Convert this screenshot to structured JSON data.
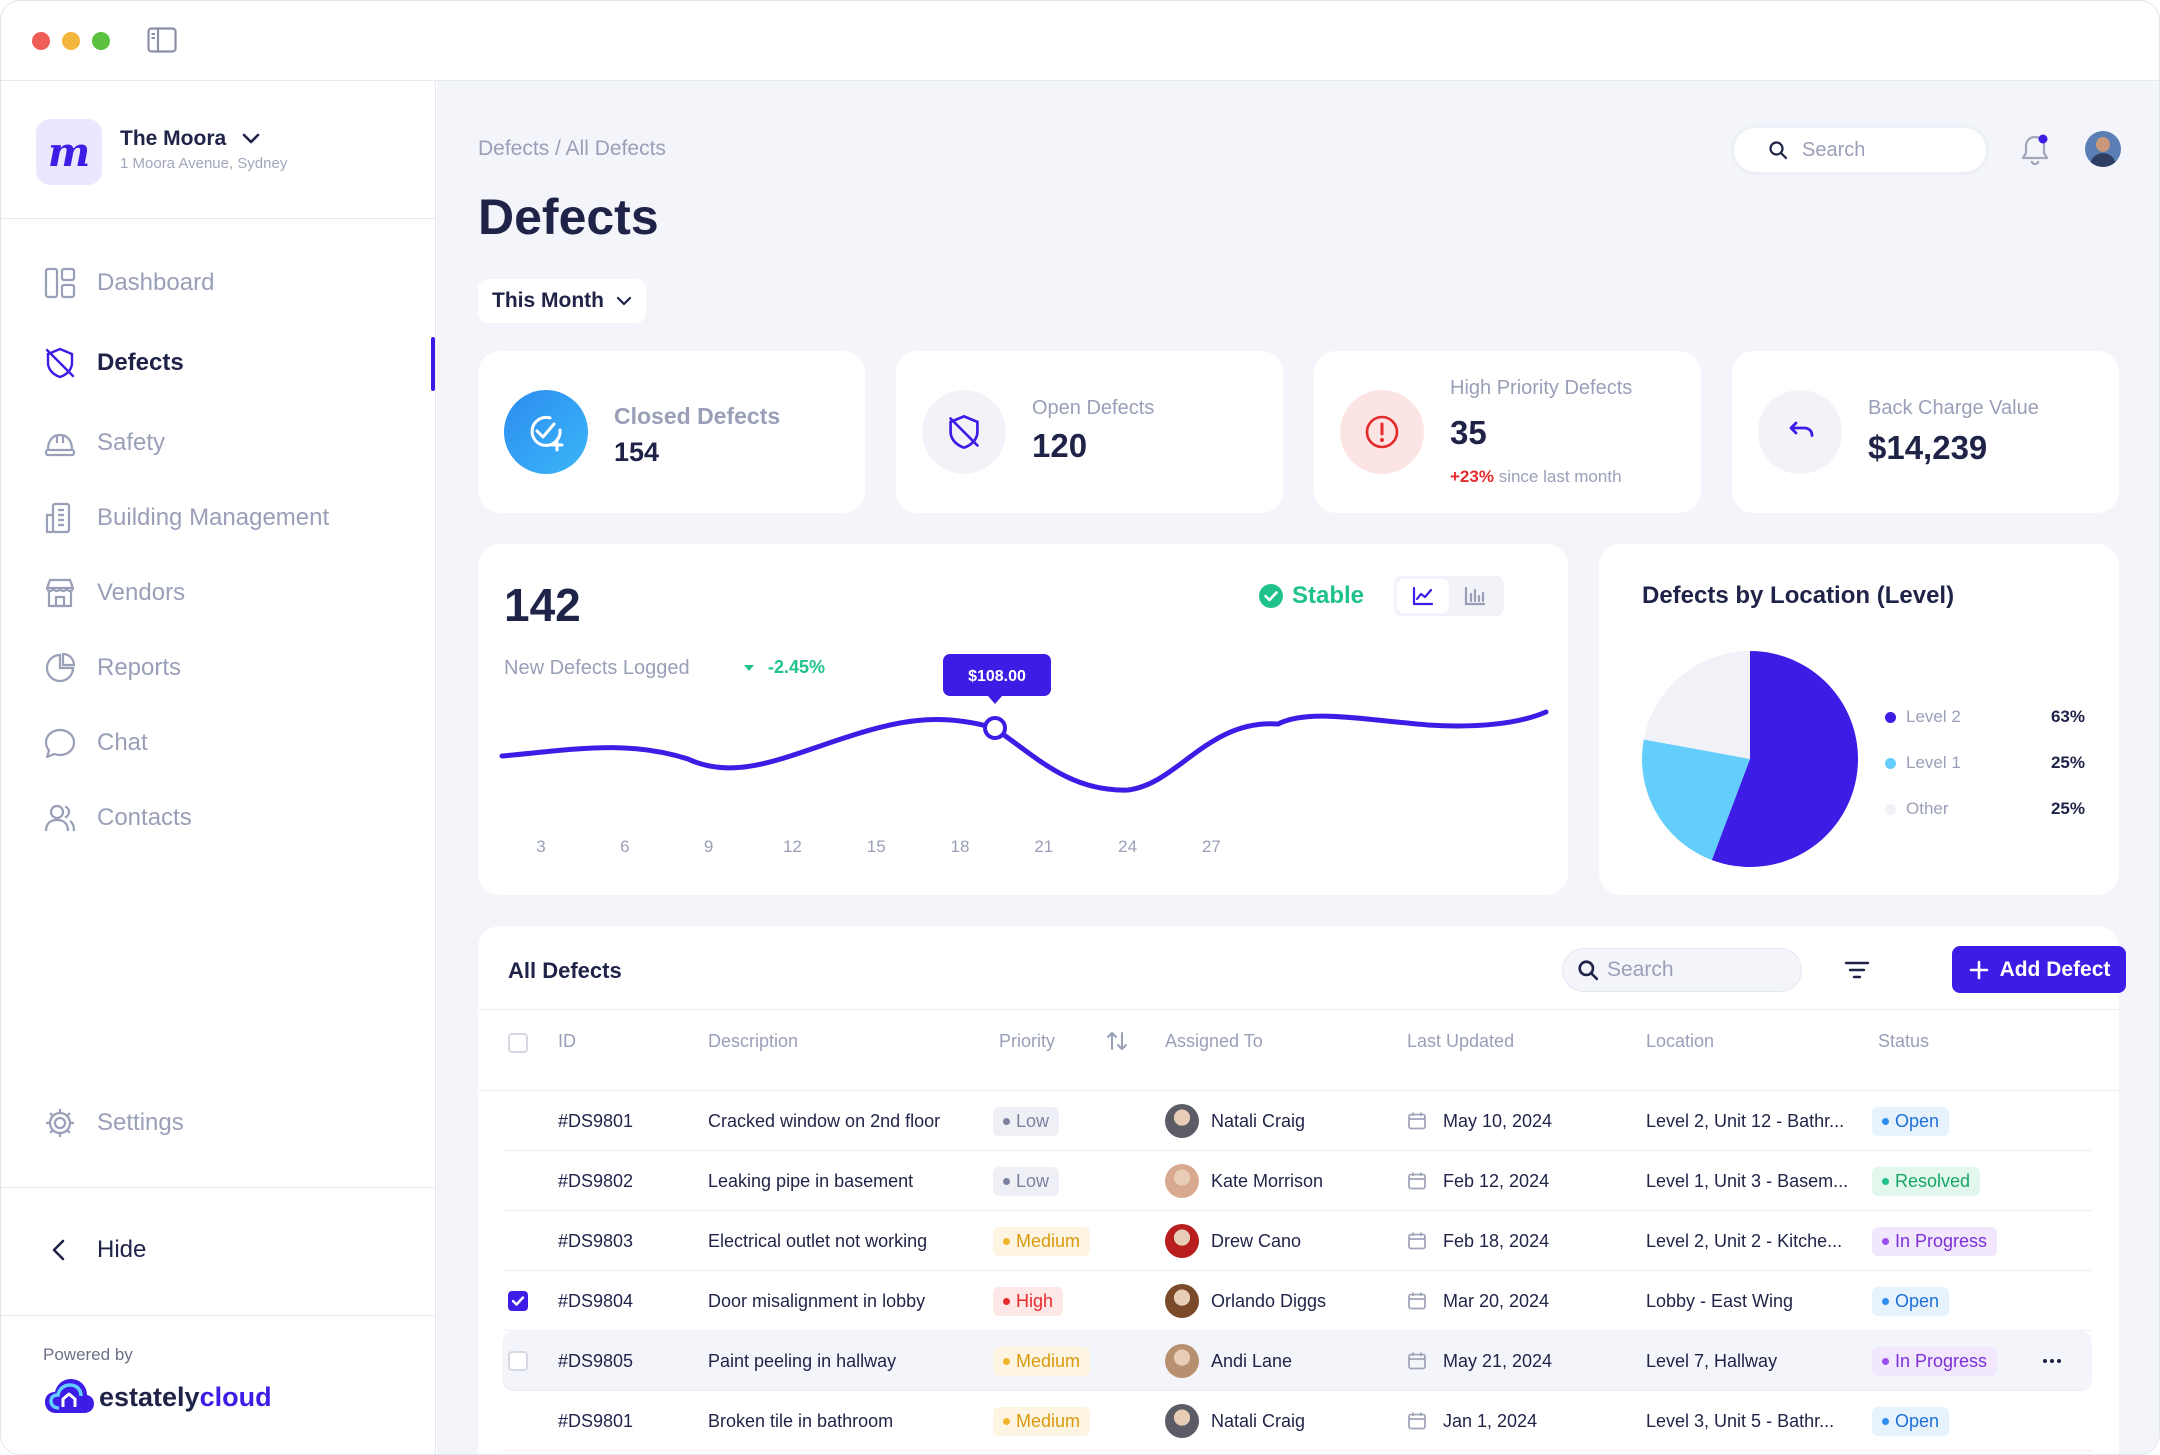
{
  "sidebar": {
    "property_name": "The Moora",
    "property_address": "1 Moora Avenue, Sydney",
    "logo_letter": "m",
    "nav": [
      {
        "label": "Dashboard",
        "icon": "dashboard-icon"
      },
      {
        "label": "Defects",
        "icon": "shield-slash-icon"
      },
      {
        "label": "Safety",
        "icon": "hard-hat-icon"
      },
      {
        "label": "Building Management",
        "icon": "building-icon"
      },
      {
        "label": "Vendors",
        "icon": "store-icon"
      },
      {
        "label": "Reports",
        "icon": "pie-chart-icon"
      },
      {
        "label": "Chat",
        "icon": "chat-icon"
      },
      {
        "label": "Contacts",
        "icon": "users-icon"
      }
    ],
    "settings_label": "Settings",
    "hide_label": "Hide",
    "powered_by": "Powered by",
    "powered_brand_a": "estately",
    "powered_brand_b": "cloud"
  },
  "header": {
    "breadcrumb": "Defects / All Defects",
    "title": "Defects",
    "search_placeholder": "Search",
    "period": "This Month"
  },
  "stats": {
    "closed": {
      "label": "Closed Defects",
      "value": "154"
    },
    "open": {
      "label": "Open Defects",
      "value": "120"
    },
    "high": {
      "label": "High Priority Defects",
      "value": "35",
      "change": "+23%",
      "change_note": "since last month"
    },
    "backcharge": {
      "label": "Back Charge Value",
      "value": "$14,239"
    }
  },
  "trend": {
    "value": "142",
    "label": "New Defects Logged",
    "change": "-2.45%",
    "status": "Stable",
    "tooltip": "$108.00",
    "x_ticks": [
      "3",
      "6",
      "9",
      "12",
      "15",
      "18",
      "21",
      "24",
      "27"
    ]
  },
  "chart_data": {
    "type": "pie",
    "title": "Defects by Location (Level)",
    "slices": [
      {
        "label": "Level 2",
        "value": 63,
        "display": "63%",
        "color": "#3d1de6"
      },
      {
        "label": "Level 1",
        "value": 25,
        "display": "25%",
        "color": "#63cdfb"
      },
      {
        "label": "Other",
        "value": 25,
        "display": "25%",
        "color": "#f1f2f8"
      }
    ]
  },
  "table": {
    "title": "All Defects",
    "search_placeholder": "Search",
    "add_label": "Add Defect",
    "columns": [
      "ID",
      "Description",
      "Priority",
      "Assigned To",
      "Last Updated",
      "Location",
      "Status"
    ],
    "rows": [
      {
        "id": "#DS9801",
        "description": "Cracked window on 2nd floor",
        "priority": "Low",
        "assignee": "Natali Craig",
        "updated": "May 10, 2024",
        "location": "Level 2, Unit 12 - Bathr...",
        "status": "Open",
        "checked": false,
        "show_cb": false
      },
      {
        "id": "#DS9802",
        "description": "Leaking pipe in basement",
        "priority": "Low",
        "assignee": "Kate Morrison",
        "updated": "Feb 12, 2024",
        "location": "Level 1, Unit 3 - Basem...",
        "status": "Resolved",
        "checked": false,
        "show_cb": false
      },
      {
        "id": "#DS9803",
        "description": "Electrical outlet not working",
        "priority": "Medium",
        "assignee": "Drew Cano",
        "updated": "Feb 18, 2024",
        "location": "Level 2, Unit 2 - Kitche...",
        "status": "In Progress",
        "checked": false,
        "show_cb": false
      },
      {
        "id": "#DS9804",
        "description": "Door misalignment in lobby",
        "priority": "High",
        "assignee": "Orlando Diggs",
        "updated": "Mar 20, 2024",
        "location": "Lobby - East Wing",
        "status": "Open",
        "checked": true,
        "show_cb": true
      },
      {
        "id": "#DS9805",
        "description": "Paint peeling in hallway",
        "priority": "Medium",
        "assignee": "Andi Lane",
        "updated": "May 21, 2024",
        "location": "Level 7, Hallway",
        "status": "In Progress",
        "checked": false,
        "show_cb": true,
        "highlight": true
      },
      {
        "id": "#DS9801",
        "description": "Broken tile in bathroom",
        "priority": "Medium",
        "assignee": "Natali Craig",
        "updated": "Jan 1, 2024",
        "location": "Level 3, Unit 5 - Bathr...",
        "status": "Open",
        "checked": false,
        "show_cb": false
      }
    ]
  }
}
